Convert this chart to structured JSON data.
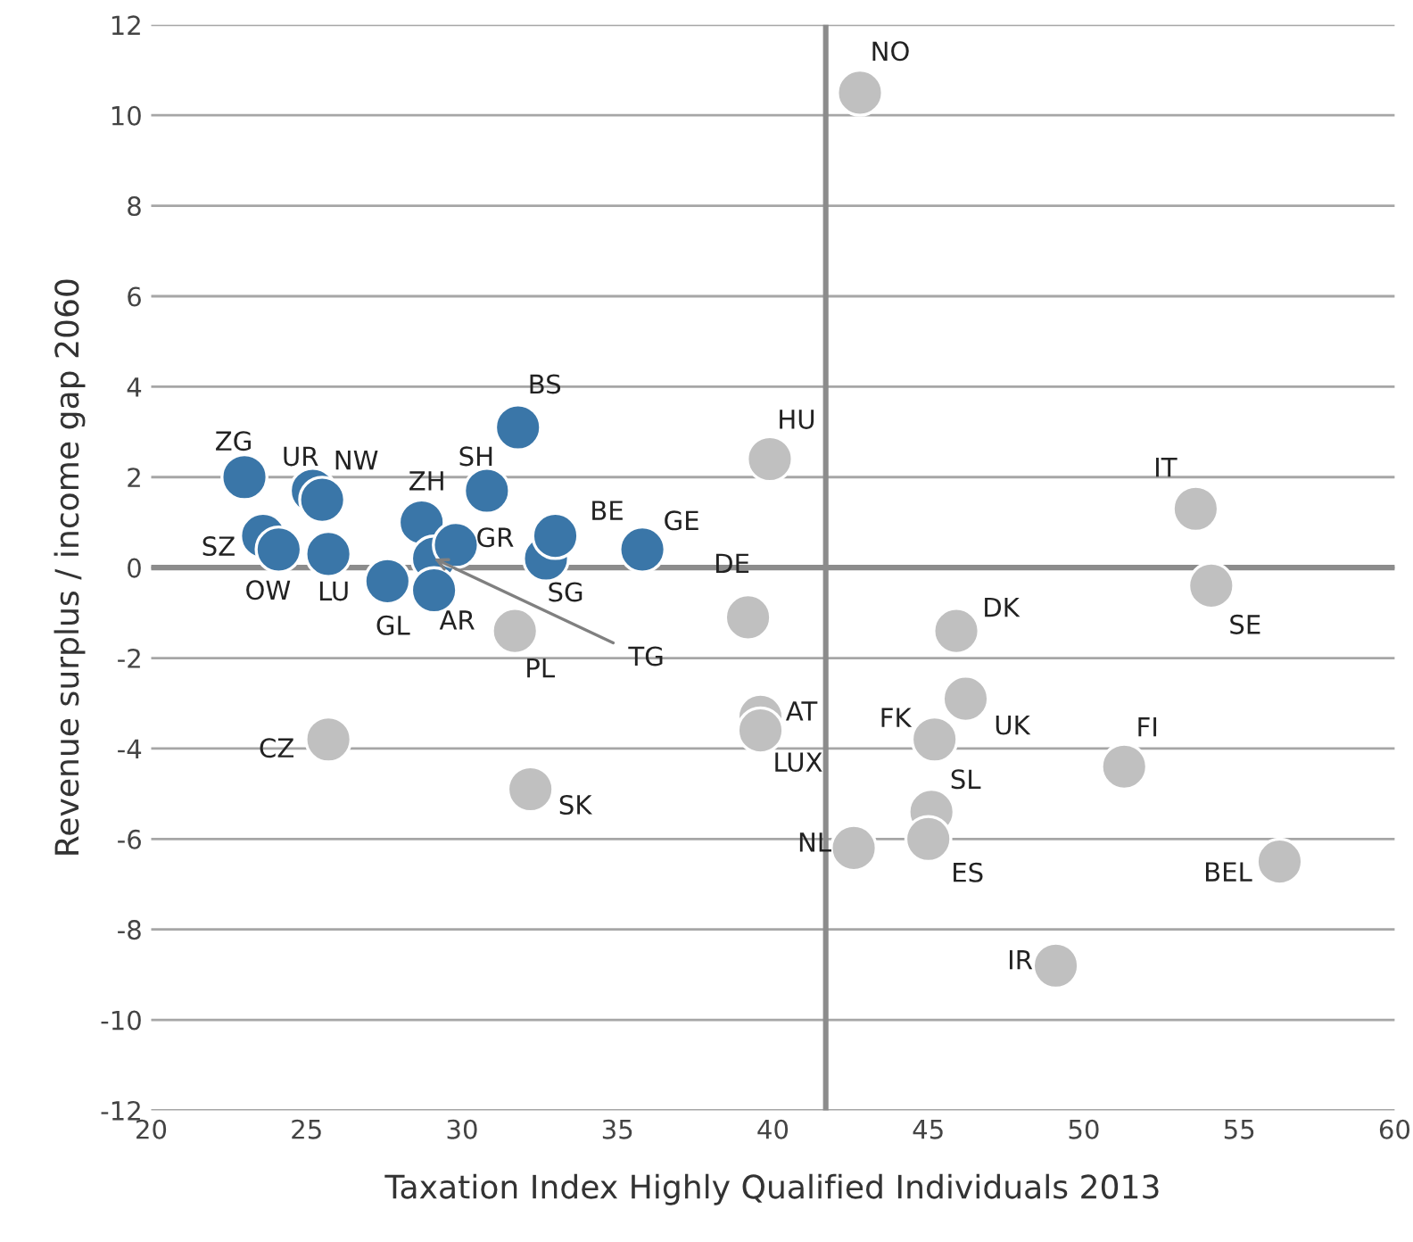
{
  "chart_data": {
    "type": "scatter",
    "xlabel": "Taxation Index Highly Qualified Individuals 2013",
    "ylabel": "Revenue surplus / income gap 2060",
    "xlim": [
      20,
      60
    ],
    "xticks": [
      20,
      25,
      30,
      35,
      40,
      45,
      50,
      55,
      60
    ],
    "ylim": [
      -12,
      12
    ],
    "yticks": [
      -12,
      -10,
      -8,
      -6,
      -4,
      -2,
      0,
      2,
      4,
      6,
      8,
      10,
      12
    ],
    "grid": "y",
    "marker": "circle",
    "series": [
      {
        "color": "#3a76a8",
        "x": [
          23.0,
          25.2,
          25.5,
          23.6,
          24.1,
          25.7,
          28.7,
          27.6,
          29.1,
          29.8,
          29.1,
          30.8,
          31.8,
          32.7,
          33.0,
          35.8
        ],
        "values": [
          2.0,
          1.7,
          1.5,
          0.7,
          0.4,
          0.3,
          1.0,
          -0.3,
          0.2,
          0.5,
          -0.5,
          1.7,
          3.1,
          0.2,
          0.7,
          0.4
        ]
      },
      {
        "color": "#c0c0c0",
        "x": [
          42.8,
          39.9,
          53.6,
          54.1,
          39.2,
          45.9,
          31.7,
          39.6,
          39.6,
          46.2,
          45.2,
          51.3,
          25.7,
          32.2,
          45.1,
          45.0,
          42.6,
          56.3,
          49.1
        ],
        "values": [
          10.5,
          2.4,
          1.3,
          -0.4,
          -1.1,
          -1.4,
          -1.4,
          -3.3,
          -3.6,
          -2.9,
          -3.8,
          -4.4,
          -3.8,
          -4.9,
          -5.4,
          -6.0,
          -6.2,
          -6.5,
          -8.8
        ]
      }
    ],
    "ref_lines": [
      {
        "axis": "x",
        "value": 41.7,
        "color": "#8c8c8c"
      },
      {
        "axis": "y",
        "value": 0,
        "color": "#8c8c8c"
      }
    ],
    "annotations": [
      {
        "text": "ZG",
        "x": 23.0,
        "y": 2.0
      },
      {
        "text": "UR",
        "x": 25.2,
        "y": 1.7
      },
      {
        "text": "NW",
        "x": 25.5,
        "y": 1.5
      },
      {
        "text": "SZ",
        "x": 23.6,
        "y": 0.7
      },
      {
        "text": "OW",
        "x": 24.1,
        "y": 0.4
      },
      {
        "text": "LU",
        "x": 25.7,
        "y": 0.3
      },
      {
        "text": "ZH",
        "x": 28.7,
        "y": 1.0
      },
      {
        "text": "GL",
        "x": 27.6,
        "y": -0.3
      },
      {
        "text": "TG",
        "x": 29.1,
        "y": 0.2
      },
      {
        "text": "GR",
        "x": 29.8,
        "y": 0.5
      },
      {
        "text": "AR",
        "x": 29.1,
        "y": -0.5
      },
      {
        "text": "SH",
        "x": 30.8,
        "y": 1.7
      },
      {
        "text": "BS",
        "x": 31.8,
        "y": 3.1
      },
      {
        "text": "SG",
        "x": 32.7,
        "y": 0.2
      },
      {
        "text": "BE",
        "x": 33.0,
        "y": 0.7
      },
      {
        "text": "GE",
        "x": 35.8,
        "y": 0.4
      },
      {
        "text": "NO",
        "x": 42.8,
        "y": 10.5
      },
      {
        "text": "HU",
        "x": 39.9,
        "y": 2.4
      },
      {
        "text": "IT",
        "x": 53.6,
        "y": 1.3
      },
      {
        "text": "SE",
        "x": 54.1,
        "y": -0.4
      },
      {
        "text": "DE",
        "x": 39.2,
        "y": -1.1
      },
      {
        "text": "DK",
        "x": 45.9,
        "y": -1.4
      },
      {
        "text": "PL",
        "x": 31.7,
        "y": -1.4
      },
      {
        "text": "AT",
        "x": 39.6,
        "y": -3.3
      },
      {
        "text": "LUX",
        "x": 39.6,
        "y": -3.6
      },
      {
        "text": "UK",
        "x": 46.2,
        "y": -2.9
      },
      {
        "text": "FK",
        "x": 45.2,
        "y": -3.8
      },
      {
        "text": "FI",
        "x": 51.3,
        "y": -4.4
      },
      {
        "text": "CZ",
        "x": 25.7,
        "y": -3.8
      },
      {
        "text": "SK",
        "x": 32.2,
        "y": -4.9
      },
      {
        "text": "SL",
        "x": 45.1,
        "y": -5.4
      },
      {
        "text": "ES",
        "x": 45.0,
        "y": -6.0
      },
      {
        "text": "NL",
        "x": 42.6,
        "y": -6.2
      },
      {
        "text": "BEL",
        "x": 56.3,
        "y": -6.5
      },
      {
        "text": "IR",
        "x": 49.1,
        "y": -8.8
      }
    ]
  }
}
